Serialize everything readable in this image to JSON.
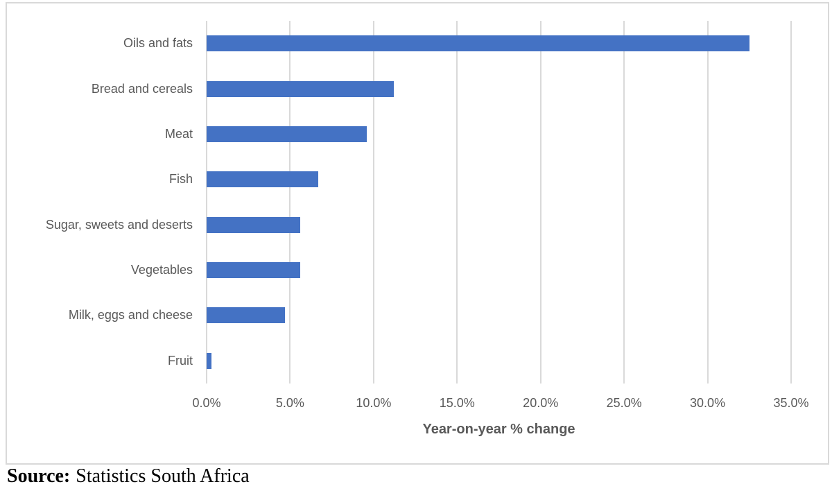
{
  "chart_data": {
    "type": "bar",
    "orientation": "horizontal",
    "title": "",
    "categories": [
      "Oils and fats",
      "Bread and cereals",
      "Meat",
      "Fish",
      "Sugar, sweets and deserts",
      "Vegetables",
      "Milk, eggs and cheese",
      "Fruit"
    ],
    "values": [
      32.5,
      11.2,
      9.6,
      6.7,
      5.6,
      5.6,
      4.7,
      0.3
    ],
    "xlabel": "Year-on-year % change",
    "ylabel": "",
    "x_tick_labels": [
      "0.0%",
      "5.0%",
      "10.0%",
      "15.0%",
      "20.0%",
      "25.0%",
      "30.0%",
      "35.0%"
    ],
    "xlim": [
      0,
      35
    ],
    "grid": "vertical-gridlines-on",
    "legend": "none",
    "bar_color": "#4472c4",
    "gridline_color": "#d9d9d9",
    "text_color": "#595959",
    "frame_border_color": "#d9d9d9"
  },
  "source": {
    "label": "Source:",
    "text": "Statistics South Africa"
  }
}
